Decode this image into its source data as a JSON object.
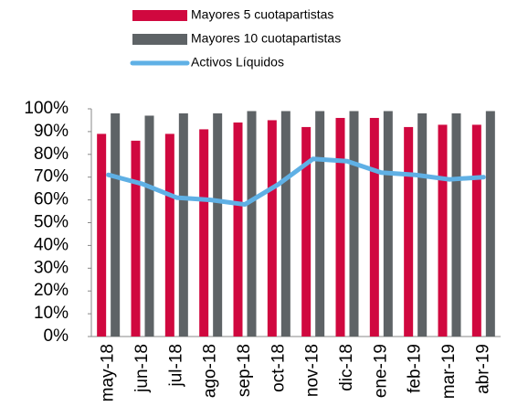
{
  "chart_data": {
    "type": "bar-line",
    "categories": [
      "may-18",
      "jun-18",
      "jul-18",
      "ago-18",
      "sep-18",
      "oct-18",
      "nov-18",
      "dic-18",
      "ene-19",
      "feb-19",
      "mar-19",
      "abr-19"
    ],
    "series": [
      {
        "name": "Mayores 5 cuotapartistas",
        "type": "bar",
        "color": "#d0083f",
        "values": [
          89,
          86,
          89,
          91,
          94,
          95,
          92,
          96,
          96,
          92,
          93,
          93
        ]
      },
      {
        "name": "Mayores 10 cuotapartistas",
        "type": "bar",
        "color": "#5e6366",
        "values": [
          98,
          97,
          98,
          98,
          99,
          99,
          99,
          99,
          99,
          98,
          98,
          99
        ]
      },
      {
        "name": "Activos Líquidos",
        "type": "line",
        "color": "#5fb0e5",
        "values": [
          71,
          67,
          61,
          60,
          58,
          67,
          78,
          77,
          72,
          71,
          69,
          70
        ]
      }
    ],
    "ylim": [
      0,
      100
    ],
    "yticks": [
      {
        "value": 0,
        "label": "0%"
      },
      {
        "value": 10,
        "label": "10%"
      },
      {
        "value": 20,
        "label": "20%"
      },
      {
        "value": 30,
        "label": "30%"
      },
      {
        "value": 40,
        "label": "40%"
      },
      {
        "value": 50,
        "label": "50%"
      },
      {
        "value": 60,
        "label": "60%"
      },
      {
        "value": 70,
        "label": "70%"
      },
      {
        "value": 80,
        "label": "80%"
      },
      {
        "value": 90,
        "label": "90%"
      },
      {
        "value": 100,
        "label": "100%"
      }
    ],
    "grid": false,
    "legend": "top"
  }
}
